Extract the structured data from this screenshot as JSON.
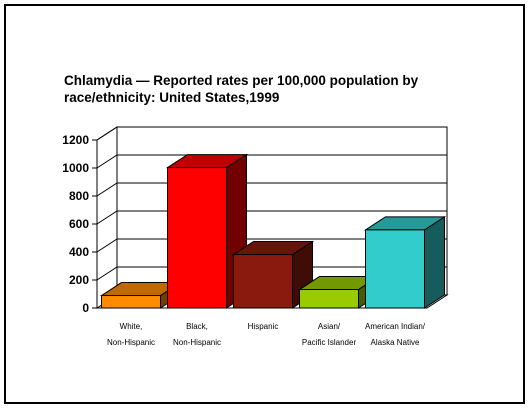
{
  "chart_data": {
    "type": "bar",
    "title_lines": [
      "Chlamydia — Reported rates per 100,000 population by",
      "race/ethnicity:  United States,1999"
    ],
    "categories": [
      [
        "White,",
        "Non-Hispanic"
      ],
      [
        "Black,",
        "Non-Hispanic"
      ],
      [
        "Hispanic"
      ],
      [
        "Asian/",
        "Pacific Islander"
      ],
      [
        "American Indian/",
        "Alaska Native"
      ]
    ],
    "values": [
      89,
      1003,
      382,
      132,
      558
    ],
    "colors": [
      "#FF8C00",
      "#FF0000",
      "#8B1A0E",
      "#99CC00",
      "#33CCCC"
    ],
    "ylim": [
      0,
      1200
    ],
    "yticks": [
      "0",
      "200",
      "400",
      "600",
      "800",
      "1000",
      "1200"
    ],
    "grid": true,
    "style": "3d"
  }
}
